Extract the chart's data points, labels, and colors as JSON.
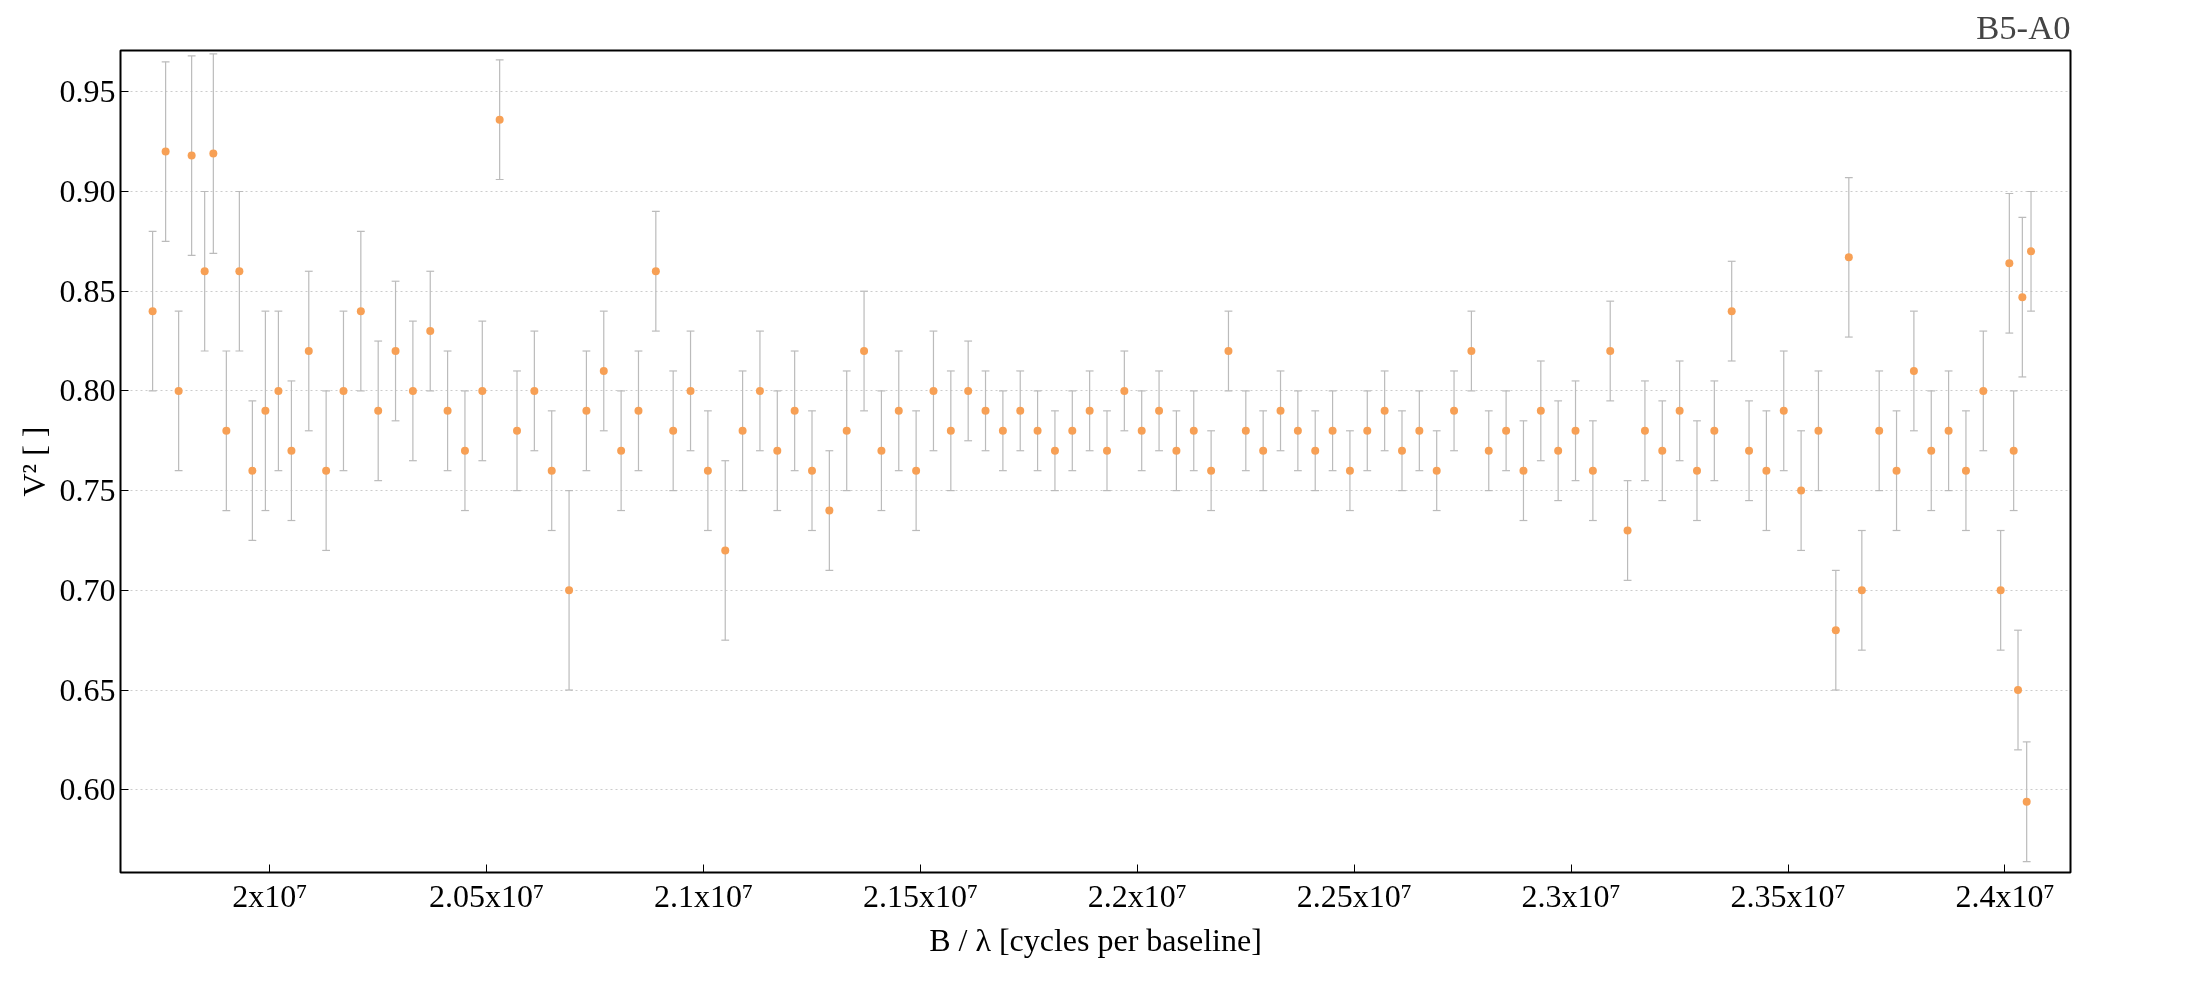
{
  "chart_data": {
    "type": "scatter",
    "title": "B5-A0",
    "xlabel": "B / λ [cycles per baseline]",
    "ylabel": "V² [ ]",
    "xlim": [
      19656000.0,
      24151000.0
    ],
    "ylim": [
      0.5585,
      0.9707
    ],
    "xticks": [
      {
        "value": 20000000.0,
        "label": "2x10⁷"
      },
      {
        "value": 20500000.0,
        "label": "2.05x10⁷"
      },
      {
        "value": 21000000.0,
        "label": "2.1x10⁷"
      },
      {
        "value": 21500000.0,
        "label": "2.15x10⁷"
      },
      {
        "value": 22000000.0,
        "label": "2.2x10⁷"
      },
      {
        "value": 22500000.0,
        "label": "2.25x10⁷"
      },
      {
        "value": 23000000.0,
        "label": "2.3x10⁷"
      },
      {
        "value": 23500000.0,
        "label": "2.35x10⁷"
      },
      {
        "value": 24000000.0,
        "label": "2.4x10⁷"
      }
    ],
    "yticks": [
      {
        "value": 0.6,
        "label": "0.60"
      },
      0.65,
      {
        "value": 0.7,
        "label": "0.70"
      },
      0.75,
      {
        "value": 0.8,
        "label": "0.80"
      },
      0.85,
      {
        "value": 0.9,
        "label": "0.90"
      },
      0.95
    ],
    "grid": "y",
    "marker": "circle",
    "x": [
      19730000.0,
      19760000.0,
      19790000.0,
      19820000.0,
      19850000.0,
      19870000.0,
      19900000.0,
      19930000.0,
      19960000.0,
      19990000.0,
      20020000.0,
      20050000.0,
      20090000.0,
      20130000.0,
      20170000.0,
      20210000.0,
      20250000.0,
      20290000.0,
      20330000.0,
      20370000.0,
      20410000.0,
      20450000.0,
      20490000.0,
      20530000.0,
      20570000.0,
      20610000.0,
      20650000.0,
      20690000.0,
      20730000.0,
      20770000.0,
      20810000.0,
      20850000.0,
      20890000.0,
      20930000.0,
      20970000.0,
      21010000.0,
      21050000.0,
      21090000.0,
      21130000.0,
      21170000.0,
      21210000.0,
      21250000.0,
      21290000.0,
      21330000.0,
      21370000.0,
      21410000.0,
      21450000.0,
      21490000.0,
      21530000.0,
      21570000.0,
      21610000.0,
      21650000.0,
      21690000.0,
      21730000.0,
      21770000.0,
      21810000.0,
      21850000.0,
      21890000.0,
      21930000.0,
      21970000.0,
      22010000.0,
      22050000.0,
      22090000.0,
      22130000.0,
      22170000.0,
      22210000.0,
      22250000.0,
      22290000.0,
      22330000.0,
      22370000.0,
      22410000.0,
      22450000.0,
      22490000.0,
      22530000.0,
      22570000.0,
      22610000.0,
      22650000.0,
      22690000.0,
      22730000.0,
      22770000.0,
      22810000.0,
      22850000.0,
      22890000.0,
      22930000.0,
      22970000.0,
      23010000.0,
      23050000.0,
      23090000.0,
      23130000.0,
      23170000.0,
      23210000.0,
      23250000.0,
      23290000.0,
      23330000.0,
      23370000.0,
      23410000.0,
      23450000.0,
      23490000.0,
      23530000.0,
      23570000.0,
      23610000.0,
      23640000.0,
      23670000.0,
      23710000.0,
      23750000.0,
      23790000.0,
      23830000.0,
      23870000.0,
      23910000.0,
      23950000.0,
      23990000.0,
      24010000.0,
      24020000.0,
      24030000.0,
      24040000.0,
      24050000.0,
      24060000.0
    ],
    "series": [
      {
        "color": "#f7a055",
        "values": [
          0.84,
          0.92,
          0.8,
          0.918,
          0.86,
          0.919,
          0.78,
          0.86,
          0.76,
          0.79,
          0.8,
          0.77,
          0.82,
          0.76,
          0.8,
          0.84,
          0.79,
          0.82,
          0.8,
          0.83,
          0.79,
          0.77,
          0.8,
          0.936,
          0.78,
          0.8,
          0.76,
          0.7,
          0.79,
          0.81,
          0.77,
          0.79,
          0.86,
          0.78,
          0.8,
          0.76,
          0.72,
          0.78,
          0.8,
          0.77,
          0.79,
          0.76,
          0.74,
          0.78,
          0.82,
          0.77,
          0.79,
          0.76,
          0.8,
          0.78,
          0.8,
          0.79,
          0.78,
          0.79,
          0.78,
          0.77,
          0.78,
          0.79,
          0.77,
          0.8,
          0.78,
          0.79,
          0.77,
          0.78,
          0.76,
          0.82,
          0.78,
          0.77,
          0.79,
          0.78,
          0.77,
          0.78,
          0.76,
          0.78,
          0.79,
          0.77,
          0.78,
          0.76,
          0.79,
          0.82,
          0.77,
          0.78,
          0.76,
          0.79,
          0.77,
          0.78,
          0.76,
          0.82,
          0.73,
          0.78,
          0.77,
          0.79,
          0.76,
          0.78,
          0.84,
          0.77,
          0.76,
          0.79,
          0.75,
          0.78,
          0.68,
          0.867,
          0.7,
          0.78,
          0.76,
          0.81,
          0.77,
          0.78,
          0.76,
          0.8,
          0.7,
          0.864,
          0.77,
          0.65,
          0.847,
          0.594,
          0.87
        ],
        "errors": [
          0.04,
          0.045,
          0.04,
          0.05,
          0.04,
          0.05,
          0.04,
          0.04,
          0.035,
          0.05,
          0.04,
          0.035,
          0.04,
          0.04,
          0.04,
          0.04,
          0.035,
          0.035,
          0.035,
          0.03,
          0.03,
          0.03,
          0.035,
          0.03,
          0.03,
          0.03,
          0.03,
          0.05,
          0.03,
          0.03,
          0.03,
          0.03,
          0.03,
          0.03,
          0.03,
          0.03,
          0.045,
          0.03,
          0.03,
          0.03,
          0.03,
          0.03,
          0.03,
          0.03,
          0.03,
          0.03,
          0.03,
          0.03,
          0.03,
          0.03,
          0.025,
          0.02,
          0.02,
          0.02,
          0.02,
          0.02,
          0.02,
          0.02,
          0.02,
          0.02,
          0.02,
          0.02,
          0.02,
          0.02,
          0.02,
          0.02,
          0.02,
          0.02,
          0.02,
          0.02,
          0.02,
          0.02,
          0.02,
          0.02,
          0.02,
          0.02,
          0.02,
          0.02,
          0.02,
          0.02,
          0.02,
          0.02,
          0.025,
          0.025,
          0.025,
          0.025,
          0.025,
          0.025,
          0.025,
          0.025,
          0.025,
          0.025,
          0.025,
          0.025,
          0.025,
          0.025,
          0.03,
          0.03,
          0.03,
          0.03,
          0.03,
          0.04,
          0.03,
          0.03,
          0.03,
          0.03,
          0.03,
          0.03,
          0.03,
          0.03,
          0.03,
          0.035,
          0.03,
          0.03,
          0.04,
          0.03,
          0.03
        ]
      }
    ]
  }
}
